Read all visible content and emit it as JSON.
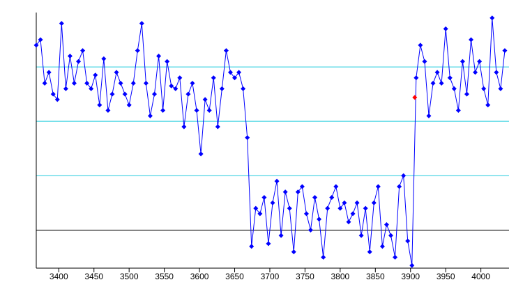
{
  "chart_data": {
    "type": "line",
    "color": "#0000ff",
    "grid": true,
    "grid_color": "#22ccdd",
    "zero_line_color": "#000000",
    "x": [
      3368,
      3374,
      3380,
      3386,
      3392,
      3398,
      3404,
      3410,
      3416,
      3422,
      3428,
      3434,
      3440,
      3446,
      3452,
      3458,
      3464,
      3470,
      3476,
      3482,
      3488,
      3494,
      3500,
      3506,
      3512,
      3518,
      3524,
      3530,
      3536,
      3542,
      3548,
      3554,
      3560,
      3566,
      3572,
      3578,
      3584,
      3590,
      3596,
      3602,
      3608,
      3614,
      3620,
      3626,
      3632,
      3638,
      3644,
      3650,
      3656,
      3662,
      3668,
      3674,
      3680,
      3686,
      3692,
      3698,
      3704,
      3710,
      3716,
      3722,
      3728,
      3734,
      3740,
      3746,
      3752,
      3758,
      3764,
      3770,
      3776,
      3782,
      3788,
      3794,
      3800,
      3806,
      3812,
      3818,
      3824,
      3830,
      3836,
      3842,
      3848,
      3854,
      3860,
      3866,
      3872,
      3878,
      3884,
      3890,
      3896,
      3902,
      3908,
      3914,
      3920,
      3926,
      3932,
      3938,
      3944,
      3950,
      3956,
      3962,
      3968,
      3974,
      3980,
      3986,
      3992,
      3998,
      4004,
      4010,
      4016,
      4022,
      4028,
      4034
    ],
    "values": [
      3400,
      3500,
      2700,
      2900,
      2500,
      2400,
      3800,
      2600,
      3200,
      2700,
      3100,
      3300,
      2700,
      2600,
      2850,
      2300,
      3150,
      2200,
      2500,
      2900,
      2700,
      2500,
      2300,
      2700,
      3300,
      3800,
      2700,
      2100,
      2500,
      3200,
      2200,
      3100,
      2650,
      2600,
      2800,
      1900,
      2500,
      2700,
      2200,
      1400,
      2400,
      2200,
      2800,
      1900,
      2600,
      3300,
      2900,
      2800,
      2900,
      2600,
      1700,
      -300,
      400,
      300,
      600,
      -250,
      500,
      900,
      -100,
      700,
      400,
      -400,
      700,
      800,
      300,
      0,
      600,
      200,
      -500,
      400,
      600,
      800,
      400,
      500,
      150,
      300,
      500,
      -100,
      400,
      -400,
      500,
      800,
      -300,
      100,
      -100,
      -500,
      800,
      1000,
      -200,
      -650,
      2800,
      3400,
      3100,
      2100,
      2700,
      2900,
      2700,
      3700,
      2800,
      2600,
      2200,
      3100,
      2500,
      3500,
      2900,
      3100,
      2600,
      2300,
      3900,
      2900,
      2600,
      3300
    ],
    "highlight": {
      "x": 3906,
      "y": 2440,
      "color": "#ff0000"
    },
    "xlim": [
      3368,
      4040
    ],
    "xticks": [
      3400,
      3450,
      3500,
      3550,
      3600,
      3650,
      3700,
      3750,
      3800,
      3850,
      3900,
      3950,
      4000
    ],
    "ylim": [
      -700,
      4000
    ],
    "yticks": [
      0,
      1000,
      2000,
      3000
    ]
  }
}
